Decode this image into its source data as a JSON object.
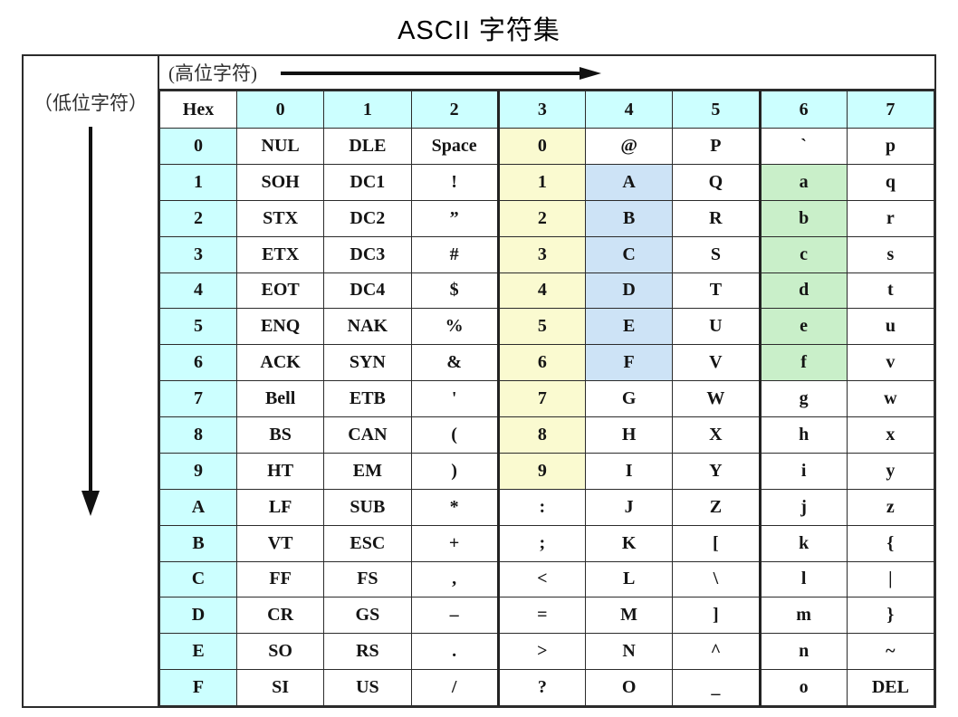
{
  "title": "ASCII 字符集",
  "labels": {
    "high_byte": "(高位字符)",
    "low_byte": "（低位字符）"
  },
  "colors": {
    "header_bg": "#ccffff",
    "digit_bg": "#fafad0",
    "upper_bg": "#cde3f6",
    "lower_bg": "#c9efc9"
  },
  "table": {
    "columns": [
      "Hex",
      "0",
      "1",
      "2",
      "3",
      "4",
      "5",
      "6",
      "7"
    ],
    "rows": [
      {
        "hex": "0",
        "cells": [
          "NUL",
          "DLE",
          "Space",
          "0",
          "@",
          "P",
          "`",
          "p"
        ],
        "cell_colors": [
          null,
          null,
          null,
          "digit_bg",
          null,
          null,
          null,
          null
        ]
      },
      {
        "hex": "1",
        "cells": [
          "SOH",
          "DC1",
          "!",
          "1",
          "A",
          "Q",
          "a",
          "q"
        ],
        "cell_colors": [
          null,
          null,
          null,
          "digit_bg",
          "upper_bg",
          null,
          "lower_bg",
          null
        ]
      },
      {
        "hex": "2",
        "cells": [
          "STX",
          "DC2",
          "”",
          "2",
          "B",
          "R",
          "b",
          "r"
        ],
        "cell_colors": [
          null,
          null,
          null,
          "digit_bg",
          "upper_bg",
          null,
          "lower_bg",
          null
        ]
      },
      {
        "hex": "3",
        "cells": [
          "ETX",
          "DC3",
          "#",
          "3",
          "C",
          "S",
          "c",
          "s"
        ],
        "cell_colors": [
          null,
          null,
          null,
          "digit_bg",
          "upper_bg",
          null,
          "lower_bg",
          null
        ]
      },
      {
        "hex": "4",
        "cells": [
          "EOT",
          "DC4",
          "$",
          "4",
          "D",
          "T",
          "d",
          "t"
        ],
        "cell_colors": [
          null,
          null,
          null,
          "digit_bg",
          "upper_bg",
          null,
          "lower_bg",
          null
        ]
      },
      {
        "hex": "5",
        "cells": [
          "ENQ",
          "NAK",
          "%",
          "5",
          "E",
          "U",
          "e",
          "u"
        ],
        "cell_colors": [
          null,
          null,
          null,
          "digit_bg",
          "upper_bg",
          null,
          "lower_bg",
          null
        ]
      },
      {
        "hex": "6",
        "cells": [
          "ACK",
          "SYN",
          "&",
          "6",
          "F",
          "V",
          "f",
          "v"
        ],
        "cell_colors": [
          null,
          null,
          null,
          "digit_bg",
          "upper_bg",
          null,
          "lower_bg",
          null
        ]
      },
      {
        "hex": "7",
        "cells": [
          "Bell",
          "ETB",
          "'",
          "7",
          "G",
          "W",
          "g",
          "w"
        ],
        "cell_colors": [
          null,
          null,
          null,
          "digit_bg",
          null,
          null,
          null,
          null
        ]
      },
      {
        "hex": "8",
        "cells": [
          "BS",
          "CAN",
          "(",
          "8",
          "H",
          "X",
          "h",
          "x"
        ],
        "cell_colors": [
          null,
          null,
          null,
          "digit_bg",
          null,
          null,
          null,
          null
        ]
      },
      {
        "hex": "9",
        "cells": [
          "HT",
          "EM",
          ")",
          "9",
          "I",
          "Y",
          "i",
          "y"
        ],
        "cell_colors": [
          null,
          null,
          null,
          "digit_bg",
          null,
          null,
          null,
          null
        ]
      },
      {
        "hex": "A",
        "cells": [
          "LF",
          "SUB",
          "*",
          ":",
          "J",
          "Z",
          "j",
          "z"
        ],
        "cell_colors": [
          null,
          null,
          null,
          null,
          null,
          null,
          null,
          null
        ]
      },
      {
        "hex": "B",
        "cells": [
          "VT",
          "ESC",
          "+",
          ";",
          "K",
          "[",
          "k",
          "{"
        ],
        "cell_colors": [
          null,
          null,
          null,
          null,
          null,
          null,
          null,
          null
        ]
      },
      {
        "hex": "C",
        "cells": [
          "FF",
          "FS",
          ",",
          "<",
          "L",
          "\\",
          "l",
          "|"
        ],
        "cell_colors": [
          null,
          null,
          null,
          null,
          null,
          null,
          null,
          null
        ]
      },
      {
        "hex": "D",
        "cells": [
          "CR",
          "GS",
          "–",
          "=",
          "M",
          "]",
          "m",
          "}"
        ],
        "cell_colors": [
          null,
          null,
          null,
          null,
          null,
          null,
          null,
          null
        ]
      },
      {
        "hex": "E",
        "cells": [
          "SO",
          "RS",
          ".",
          ">",
          "N",
          "^",
          "n",
          "~"
        ],
        "cell_colors": [
          null,
          null,
          null,
          null,
          null,
          null,
          null,
          null
        ]
      },
      {
        "hex": "F",
        "cells": [
          "SI",
          "US",
          "/",
          "?",
          "O",
          "_",
          "o",
          "DEL"
        ],
        "cell_colors": [
          null,
          null,
          null,
          null,
          null,
          null,
          null,
          null
        ]
      }
    ]
  }
}
